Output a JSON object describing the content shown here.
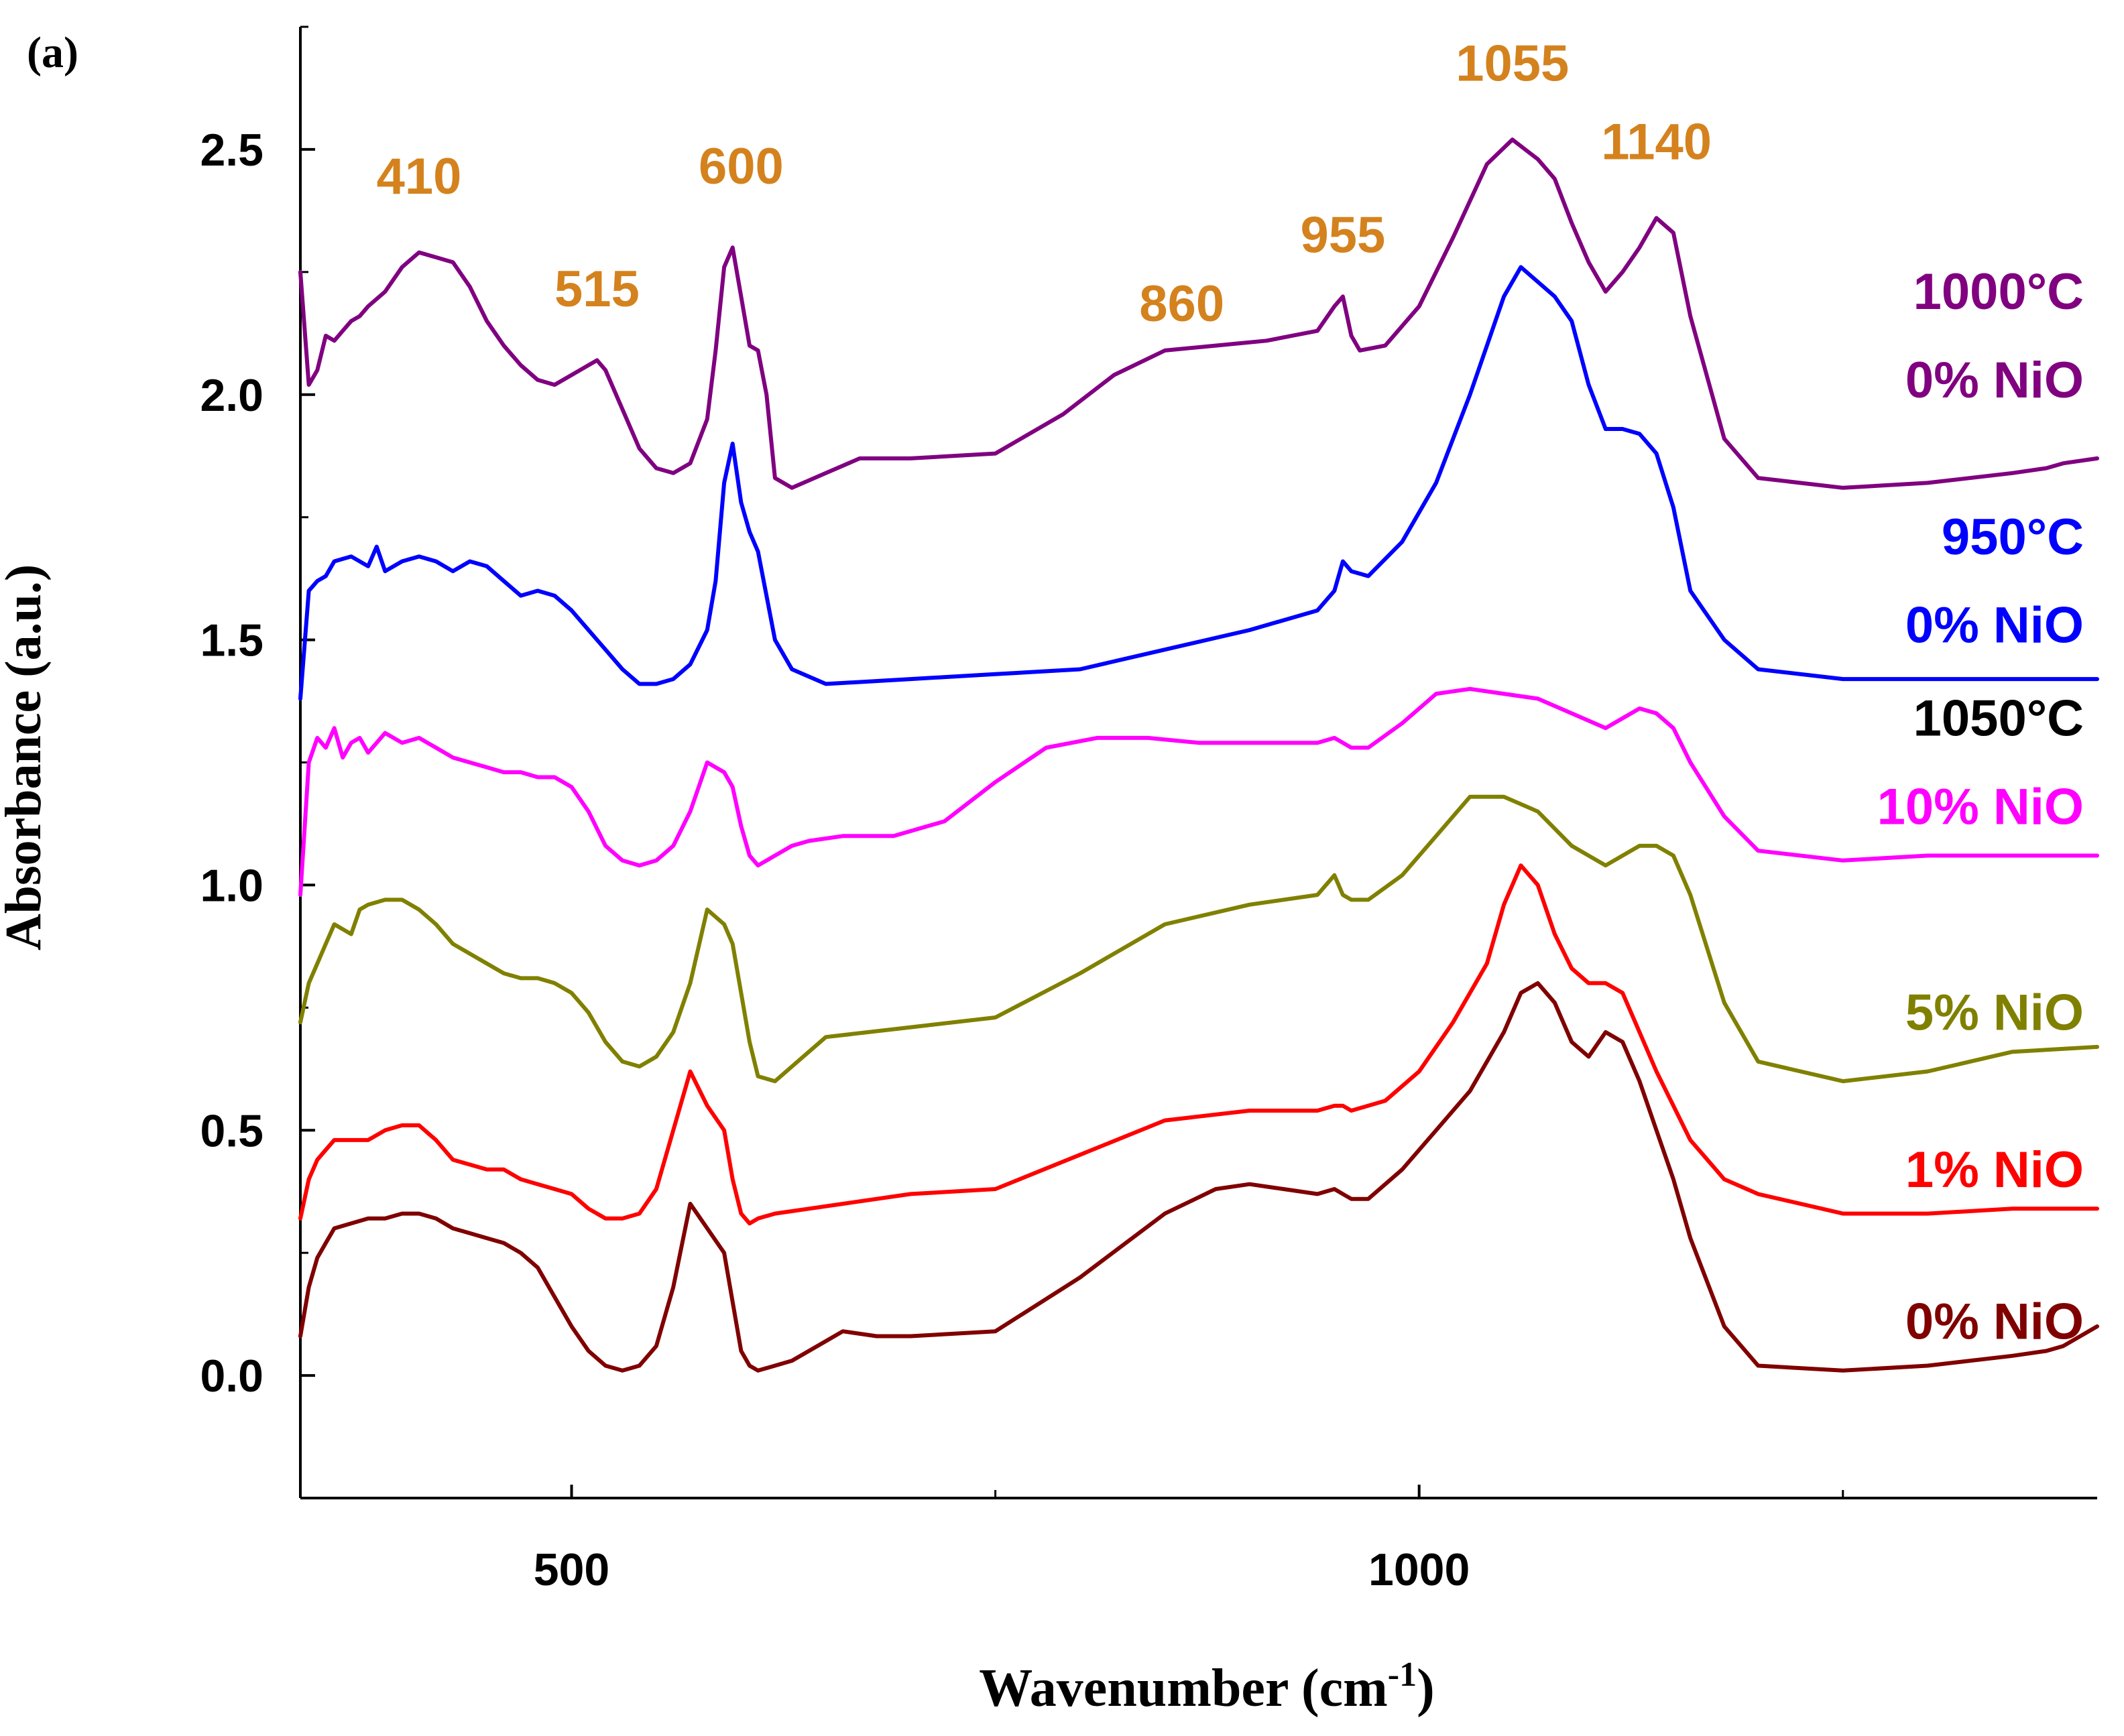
{
  "chart_data": {
    "type": "line",
    "panel_label": "(a)",
    "title": "",
    "xlabel": "Wavenumber (cm",
    "xlabel_sup": "-1",
    "xlabel_close": ")",
    "ylabel": "Absorbance (a.u.)",
    "xlim": [
      340,
      1400
    ],
    "ylim": [
      -0.25,
      2.75
    ],
    "xticks": [
      500,
      1000
    ],
    "xtick_labels": [
      "500",
      "1000"
    ],
    "yticks": [
      0.0,
      0.5,
      1.0,
      1.5,
      2.0,
      2.5
    ],
    "ytick_labels": [
      "0.0",
      "0.5",
      "1.0",
      "1.5",
      "2.0",
      "2.5"
    ],
    "grid": false,
    "peak_color": "#D4821E",
    "peak_labels": [
      {
        "text": "410",
        "x": 410,
        "y": 2.41
      },
      {
        "text": "515",
        "x": 515,
        "y": 2.18
      },
      {
        "text": "600",
        "x": 600,
        "y": 2.43
      },
      {
        "text": "860",
        "x": 860,
        "y": 2.15
      },
      {
        "text": "955",
        "x": 955,
        "y": 2.29
      },
      {
        "text": "1055",
        "x": 1055,
        "y": 2.64
      },
      {
        "text": "1140",
        "x": 1140,
        "y": 2.48
      }
    ],
    "series": [
      {
        "name": "1000°C 0% NiO",
        "color": "#800080",
        "label_lines": [
          "1000°C",
          "0% NiO"
        ],
        "label_colors": [
          "#800080",
          "#800080"
        ],
        "x": [
          340,
          345,
          350,
          355,
          360,
          365,
          370,
          375,
          380,
          390,
          400,
          410,
          420,
          430,
          440,
          450,
          460,
          470,
          480,
          490,
          500,
          510,
          515,
          520,
          530,
          540,
          550,
          560,
          570,
          580,
          585,
          590,
          595,
          600,
          605,
          610,
          615,
          620,
          630,
          650,
          670,
          700,
          750,
          790,
          820,
          850,
          880,
          910,
          940,
          950,
          955,
          960,
          965,
          980,
          1000,
          1020,
          1040,
          1055,
          1070,
          1080,
          1090,
          1100,
          1110,
          1120,
          1130,
          1140,
          1150,
          1160,
          1180,
          1200,
          1250,
          1300,
          1350,
          1370,
          1380,
          1400
        ],
        "y": [
          2.25,
          2.02,
          2.05,
          2.12,
          2.11,
          2.13,
          2.15,
          2.16,
          2.18,
          2.21,
          2.26,
          2.29,
          2.28,
          2.27,
          2.22,
          2.15,
          2.1,
          2.06,
          2.03,
          2.02,
          2.04,
          2.06,
          2.07,
          2.05,
          1.97,
          1.89,
          1.85,
          1.84,
          1.86,
          1.95,
          2.09,
          2.26,
          2.3,
          2.2,
          2.1,
          2.09,
          2.0,
          1.83,
          1.81,
          1.84,
          1.87,
          1.87,
          1.88,
          1.96,
          2.04,
          2.09,
          2.1,
          2.11,
          2.13,
          2.18,
          2.2,
          2.12,
          2.09,
          2.1,
          2.18,
          2.32,
          2.47,
          2.52,
          2.48,
          2.44,
          2.35,
          2.27,
          2.21,
          2.25,
          2.3,
          2.36,
          2.33,
          2.16,
          1.91,
          1.83,
          1.81,
          1.82,
          1.84,
          1.85,
          1.86,
          1.87
        ]
      },
      {
        "name": "950°C 0% NiO",
        "color": "#0000FF",
        "label_lines": [
          "950°C",
          "0% NiO"
        ],
        "label_colors": [
          "#0000FF",
          "#0000FF"
        ],
        "x": [
          340,
          345,
          350,
          355,
          360,
          370,
          380,
          385,
          390,
          400,
          410,
          420,
          430,
          440,
          450,
          460,
          470,
          480,
          490,
          500,
          510,
          520,
          530,
          540,
          550,
          560,
          570,
          580,
          585,
          590,
          595,
          600,
          605,
          610,
          620,
          630,
          650,
          700,
          750,
          800,
          850,
          900,
          940,
          950,
          955,
          960,
          970,
          990,
          1010,
          1030,
          1050,
          1060,
          1080,
          1090,
          1100,
          1110,
          1120,
          1130,
          1140,
          1150,
          1160,
          1180,
          1200,
          1250,
          1300,
          1350,
          1400
        ],
        "y": [
          1.38,
          1.6,
          1.62,
          1.63,
          1.66,
          1.67,
          1.65,
          1.69,
          1.64,
          1.66,
          1.67,
          1.66,
          1.64,
          1.66,
          1.65,
          1.62,
          1.59,
          1.6,
          1.59,
          1.56,
          1.52,
          1.48,
          1.44,
          1.41,
          1.41,
          1.42,
          1.45,
          1.52,
          1.62,
          1.82,
          1.9,
          1.78,
          1.72,
          1.68,
          1.5,
          1.44,
          1.41,
          1.42,
          1.43,
          1.44,
          1.48,
          1.52,
          1.56,
          1.6,
          1.66,
          1.64,
          1.63,
          1.7,
          1.82,
          2.0,
          2.2,
          2.26,
          2.2,
          2.15,
          2.02,
          1.93,
          1.93,
          1.92,
          1.88,
          1.77,
          1.6,
          1.5,
          1.44,
          1.42,
          1.42,
          1.42,
          1.42
        ]
      },
      {
        "name": "1050°C 10% NiO",
        "color": "#FF00FF",
        "label_lines": [
          "1050°C",
          "10% NiO"
        ],
        "label_colors": [
          "#000000",
          "#FF00FF"
        ],
        "x": [
          340,
          345,
          350,
          355,
          360,
          365,
          370,
          375,
          380,
          390,
          400,
          410,
          420,
          430,
          440,
          450,
          460,
          470,
          480,
          490,
          500,
          510,
          520,
          530,
          540,
          550,
          560,
          570,
          580,
          590,
          595,
          600,
          605,
          610,
          620,
          630,
          640,
          660,
          690,
          720,
          750,
          780,
          810,
          840,
          870,
          900,
          940,
          950,
          955,
          960,
          970,
          990,
          1010,
          1030,
          1050,
          1070,
          1090,
          1110,
          1120,
          1130,
          1140,
          1150,
          1160,
          1180,
          1200,
          1250,
          1300,
          1350,
          1400
        ],
        "y": [
          0.98,
          1.25,
          1.3,
          1.28,
          1.32,
          1.26,
          1.29,
          1.3,
          1.27,
          1.31,
          1.29,
          1.3,
          1.28,
          1.26,
          1.25,
          1.24,
          1.23,
          1.23,
          1.22,
          1.22,
          1.2,
          1.15,
          1.08,
          1.05,
          1.04,
          1.05,
          1.08,
          1.15,
          1.25,
          1.23,
          1.2,
          1.12,
          1.06,
          1.04,
          1.06,
          1.08,
          1.09,
          1.1,
          1.1,
          1.13,
          1.21,
          1.28,
          1.3,
          1.3,
          1.29,
          1.29,
          1.29,
          1.3,
          1.29,
          1.28,
          1.28,
          1.33,
          1.39,
          1.4,
          1.39,
          1.38,
          1.35,
          1.32,
          1.34,
          1.36,
          1.35,
          1.32,
          1.25,
          1.14,
          1.07,
          1.05,
          1.06,
          1.06,
          1.06
        ]
      },
      {
        "name": "5% NiO",
        "color": "#808000",
        "label_lines": [
          "5% NiO"
        ],
        "label_colors": [
          "#808000"
        ],
        "x": [
          340,
          345,
          350,
          355,
          360,
          370,
          375,
          380,
          390,
          400,
          410,
          420,
          430,
          440,
          450,
          460,
          470,
          480,
          490,
          500,
          510,
          520,
          530,
          540,
          550,
          560,
          570,
          580,
          590,
          595,
          600,
          605,
          610,
          620,
          630,
          650,
          700,
          750,
          800,
          850,
          900,
          940,
          950,
          955,
          960,
          970,
          990,
          1010,
          1030,
          1050,
          1070,
          1090,
          1110,
          1120,
          1130,
          1140,
          1150,
          1160,
          1180,
          1200,
          1250,
          1300,
          1350,
          1400
        ],
        "y": [
          0.72,
          0.8,
          0.84,
          0.88,
          0.92,
          0.9,
          0.95,
          0.96,
          0.97,
          0.97,
          0.95,
          0.92,
          0.88,
          0.86,
          0.84,
          0.82,
          0.81,
          0.81,
          0.8,
          0.78,
          0.74,
          0.68,
          0.64,
          0.63,
          0.65,
          0.7,
          0.8,
          0.95,
          0.92,
          0.88,
          0.78,
          0.68,
          0.61,
          0.6,
          0.63,
          0.69,
          0.71,
          0.73,
          0.82,
          0.92,
          0.96,
          0.98,
          1.02,
          0.98,
          0.97,
          0.97,
          1.02,
          1.1,
          1.18,
          1.18,
          1.15,
          1.08,
          1.04,
          1.06,
          1.08,
          1.08,
          1.06,
          0.98,
          0.76,
          0.64,
          0.6,
          0.62,
          0.66,
          0.67
        ]
      },
      {
        "name": "1% NiO",
        "color": "#FF0000",
        "label_lines": [
          "1% NiO"
        ],
        "label_colors": [
          "#FF0000"
        ],
        "x": [
          340,
          345,
          350,
          355,
          360,
          370,
          380,
          390,
          400,
          410,
          420,
          430,
          440,
          450,
          460,
          470,
          480,
          490,
          500,
          510,
          520,
          530,
          540,
          550,
          560,
          570,
          580,
          590,
          595,
          600,
          605,
          610,
          620,
          640,
          660,
          700,
          750,
          800,
          850,
          900,
          940,
          950,
          955,
          960,
          980,
          1000,
          1020,
          1040,
          1050,
          1060,
          1070,
          1080,
          1090,
          1100,
          1110,
          1120,
          1130,
          1140,
          1150,
          1160,
          1180,
          1200,
          1250,
          1300,
          1350,
          1400
        ],
        "y": [
          0.32,
          0.4,
          0.44,
          0.46,
          0.48,
          0.48,
          0.48,
          0.5,
          0.51,
          0.51,
          0.48,
          0.44,
          0.43,
          0.42,
          0.42,
          0.4,
          0.39,
          0.38,
          0.37,
          0.34,
          0.32,
          0.32,
          0.33,
          0.38,
          0.5,
          0.62,
          0.55,
          0.5,
          0.4,
          0.33,
          0.31,
          0.32,
          0.33,
          0.34,
          0.35,
          0.37,
          0.38,
          0.45,
          0.52,
          0.54,
          0.54,
          0.55,
          0.55,
          0.54,
          0.56,
          0.62,
          0.72,
          0.84,
          0.96,
          1.04,
          1.0,
          0.9,
          0.83,
          0.8,
          0.8,
          0.78,
          0.7,
          0.62,
          0.55,
          0.48,
          0.4,
          0.37,
          0.33,
          0.33,
          0.34,
          0.34
        ]
      },
      {
        "name": "0% NiO",
        "color": "#800000",
        "label_lines": [
          "0% NiO"
        ],
        "label_colors": [
          "#800000"
        ],
        "x": [
          340,
          345,
          350,
          355,
          360,
          370,
          380,
          390,
          400,
          410,
          420,
          430,
          440,
          450,
          460,
          470,
          480,
          490,
          500,
          510,
          520,
          530,
          540,
          550,
          560,
          570,
          580,
          590,
          595,
          600,
          605,
          610,
          620,
          630,
          640,
          650,
          660,
          680,
          700,
          750,
          800,
          850,
          880,
          900,
          920,
          940,
          950,
          955,
          960,
          970,
          990,
          1010,
          1030,
          1050,
          1060,
          1070,
          1080,
          1090,
          1100,
          1110,
          1120,
          1130,
          1140,
          1150,
          1160,
          1180,
          1200,
          1250,
          1300,
          1350,
          1370,
          1380,
          1400
        ],
        "y": [
          0.08,
          0.18,
          0.24,
          0.27,
          0.3,
          0.31,
          0.32,
          0.32,
          0.33,
          0.33,
          0.32,
          0.3,
          0.29,
          0.28,
          0.27,
          0.25,
          0.22,
          0.16,
          0.1,
          0.05,
          0.02,
          0.01,
          0.02,
          0.06,
          0.18,
          0.35,
          0.3,
          0.25,
          0.15,
          0.05,
          0.02,
          0.01,
          0.02,
          0.03,
          0.05,
          0.07,
          0.09,
          0.08,
          0.08,
          0.09,
          0.2,
          0.33,
          0.38,
          0.39,
          0.38,
          0.37,
          0.38,
          0.37,
          0.36,
          0.36,
          0.42,
          0.5,
          0.58,
          0.7,
          0.78,
          0.8,
          0.76,
          0.68,
          0.65,
          0.7,
          0.68,
          0.6,
          0.5,
          0.4,
          0.28,
          0.1,
          0.02,
          0.01,
          0.02,
          0.04,
          0.05,
          0.06,
          0.1
        ]
      }
    ]
  }
}
